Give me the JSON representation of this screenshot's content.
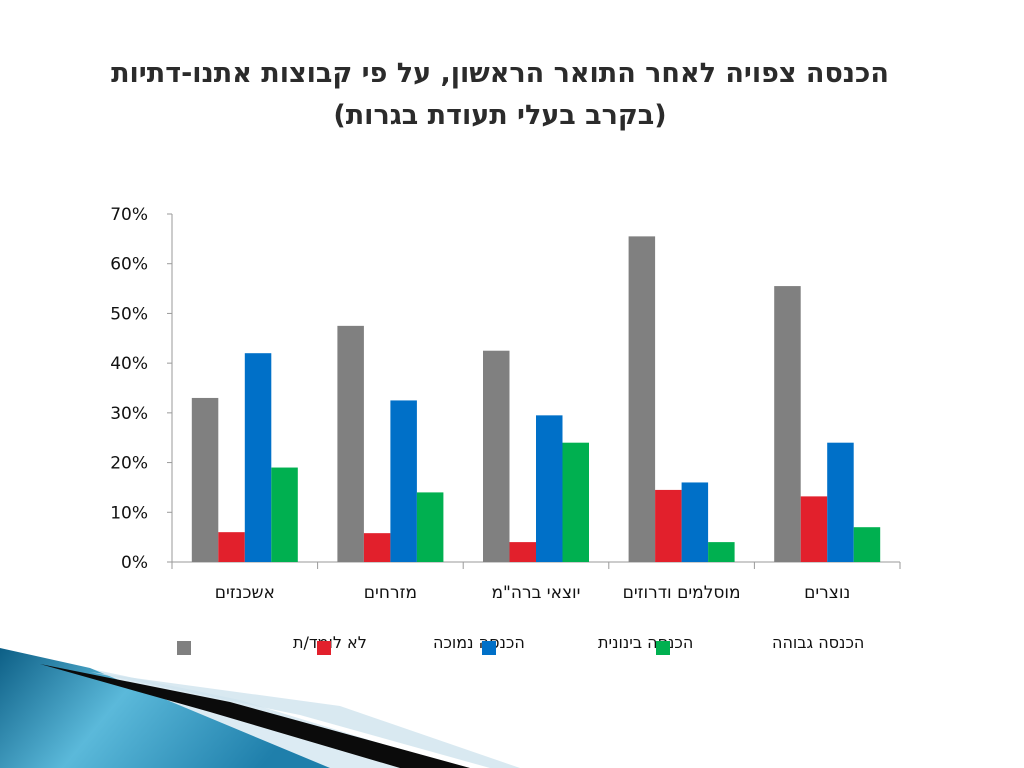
{
  "slide": {
    "title_line_1": "הכנסה צפויה לאחר התואר הראשון, על פי קבוצות אתנו-דתיות",
    "title_line_2": "(בקרב בעלי תעודת בגרות)"
  },
  "chart_data": {
    "type": "bar",
    "categories": [
      "אשכנזים",
      "מזרחים",
      "יוצאי ברה\"מ",
      "מוסלמים ודרוזים",
      "נוצרים"
    ],
    "series": [
      {
        "name": "לא לומד/ת",
        "color": "#808080",
        "values": [
          33,
          47.5,
          42.5,
          65.5,
          55.5
        ]
      },
      {
        "name": "הכנסה נמוכה",
        "color": "#e2202c",
        "values": [
          6,
          5.8,
          4,
          14.5,
          13.2
        ]
      },
      {
        "name": "הכנסה בינונית",
        "color": "#0070c8",
        "values": [
          42,
          32.5,
          29.5,
          16,
          24
        ]
      },
      {
        "name": "הכנסה גבוהה",
        "color": "#00b050",
        "values": [
          19,
          14,
          24,
          4,
          7
        ]
      }
    ],
    "yticks": [
      "0%",
      "10%",
      "20%",
      "30%",
      "40%",
      "50%",
      "60%",
      "70%"
    ],
    "ylim": [
      0,
      70
    ],
    "grid": false,
    "legend_position": "bottom"
  }
}
